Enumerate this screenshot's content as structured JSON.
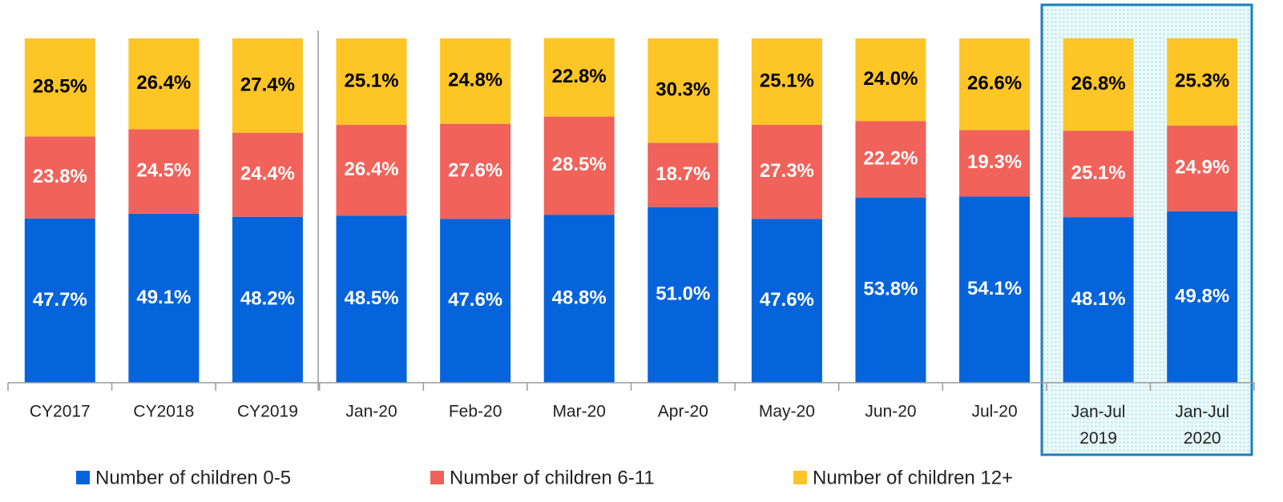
{
  "chart_data": {
    "type": "stacked_bar",
    "categories": [
      "CY2017",
      "CY2018",
      "CY2019",
      "Jan-20",
      "Feb-20",
      "Mar-20",
      "Apr-20",
      "May-20",
      "Jun-20",
      "Jul-20",
      "Jan-Jul 2019",
      "Jan-Jul 2020"
    ],
    "ylim": [
      0,
      100
    ],
    "series": [
      {
        "name": "Number of children 0-5",
        "color": "#0563db",
        "values": [
          47.7,
          49.1,
          48.2,
          48.5,
          47.6,
          48.8,
          51.0,
          47.6,
          53.8,
          54.1,
          48.1,
          49.8
        ],
        "value_labels": [
          "47.7%",
          "49.1%",
          "48.2%",
          "48.5%",
          "47.6%",
          "48.8%",
          "51.0%",
          "47.6%",
          "53.8%",
          "54.1%",
          "48.1%",
          "49.8%"
        ]
      },
      {
        "name": "Number of children 6-11",
        "color": "#f0625a",
        "values": [
          23.8,
          24.5,
          24.4,
          26.4,
          27.6,
          28.5,
          18.7,
          27.3,
          22.2,
          19.3,
          25.1,
          24.9
        ],
        "value_labels": [
          "23.8%",
          "24.5%",
          "24.4%",
          "26.4%",
          "27.6%",
          "28.5%",
          "18.7%",
          "27.3%",
          "22.2%",
          "19.3%",
          "25.1%",
          "24.9%"
        ]
      },
      {
        "name": "Number of children 12+",
        "color": "#fdc526",
        "values": [
          28.5,
          26.4,
          27.4,
          25.1,
          24.8,
          22.8,
          30.3,
          25.1,
          24.0,
          26.6,
          26.8,
          25.3
        ],
        "value_labels": [
          "28.5%",
          "26.4%",
          "27.4%",
          "25.1%",
          "24.8%",
          "22.8%",
          "30.3%",
          "25.1%",
          "24.0%",
          "26.6%",
          "26.8%",
          "25.3%"
        ]
      }
    ]
  }
}
